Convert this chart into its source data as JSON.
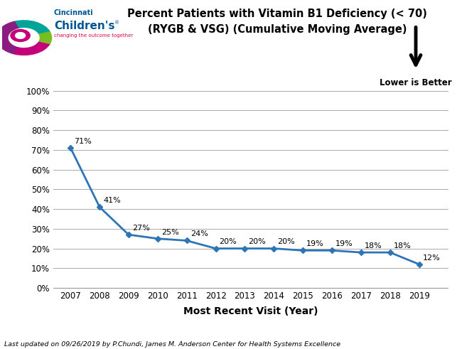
{
  "years": [
    2007,
    2008,
    2009,
    2010,
    2011,
    2012,
    2013,
    2014,
    2015,
    2016,
    2017,
    2018,
    2019
  ],
  "values": [
    71,
    41,
    27,
    25,
    24,
    20,
    20,
    20,
    19,
    19,
    18,
    18,
    12
  ],
  "labels": [
    "71%",
    "41%",
    "27%",
    "25%",
    "24%",
    "20%",
    "20%",
    "20%",
    "19%",
    "19%",
    "18%",
    "18%",
    "12%"
  ],
  "line_color": "#2E75B6",
  "marker_color": "#2E75B6",
  "title_line1": "Percent Patients with Vitamin B1 Deficiency (< 70)",
  "title_line2": "(RYGB & VSG) (Cumulative Moving Average)",
  "xlabel": "Most Recent Visit (Year)",
  "ylim": [
    0,
    100
  ],
  "yticks": [
    0,
    10,
    20,
    30,
    40,
    50,
    60,
    70,
    80,
    90,
    100
  ],
  "ytick_labels": [
    "0%",
    "10%",
    "20%",
    "30%",
    "40%",
    "50%",
    "60%",
    "70%",
    "80%",
    "90%",
    "100%"
  ],
  "footer_text": "Last updated on 09/26/2019 by P.Chundi, James M. Anderson Center for Health Systems Excellence",
  "lower_is_better_text": "Lower is Better",
  "background_color": "#ffffff",
  "grid_color": "#aaaaaa",
  "logo_colors": {
    "teal": "#00A499",
    "pink": "#C4007A",
    "magenta": "#8B1D82",
    "green": "#78BE20",
    "blue_text": "#005695",
    "red_tagline": "#E0004D"
  }
}
